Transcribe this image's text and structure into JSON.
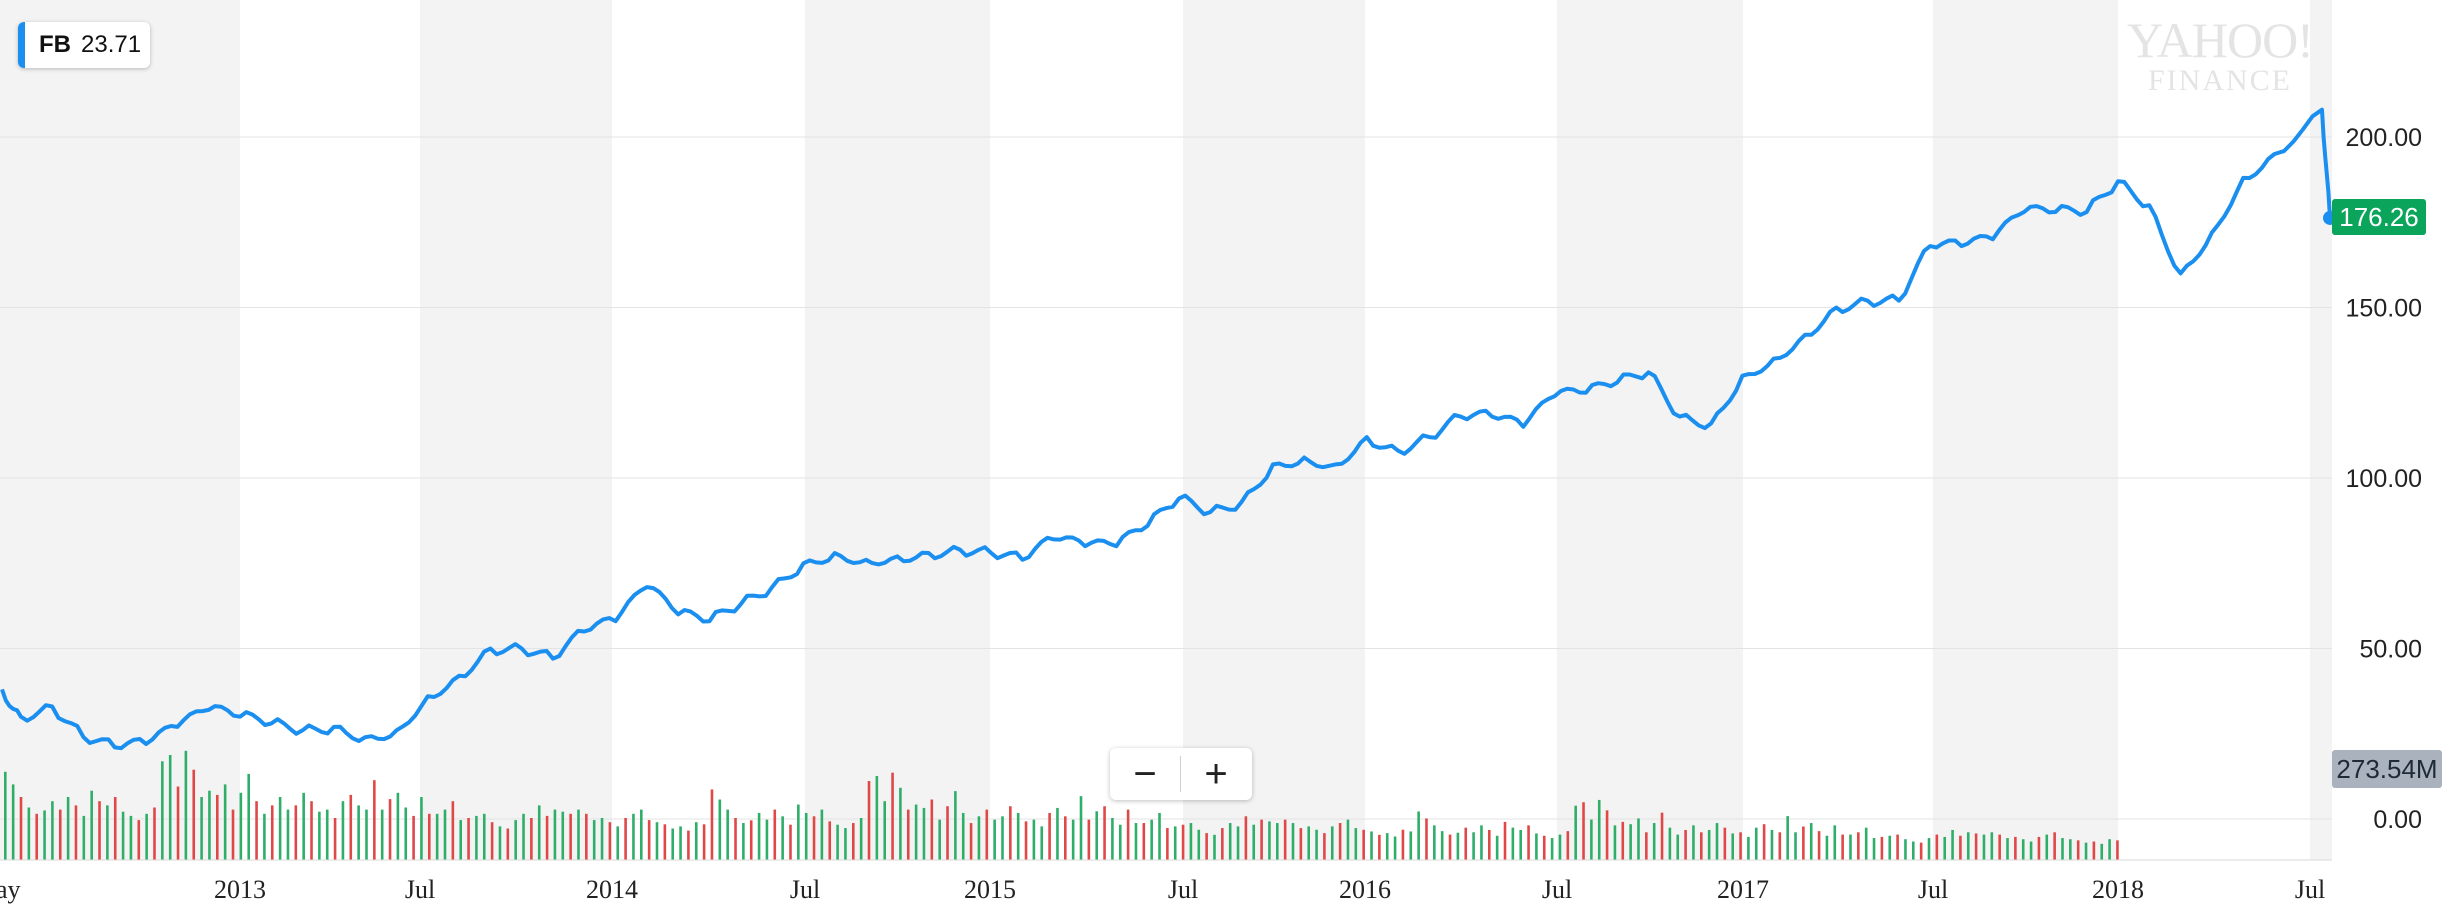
{
  "legend": {
    "symbol": "FB",
    "value": "23.71",
    "color": "#1a8ff0"
  },
  "watermark": {
    "line1": "YAHOO!",
    "line2": "FINANCE"
  },
  "zoom": {
    "minus_label": "−",
    "plus_label": "+"
  },
  "last_price_label": "176.26",
  "last_volume_label": "273.54M",
  "colors": {
    "line": "#1a8ff0",
    "band": "#f3f3f3",
    "volume_up": "#2fae6a",
    "volume_down": "#e04848",
    "price_tag": "#0aa55a",
    "volume_tag": "#a9b2bd"
  },
  "chart_data": {
    "type": "line",
    "title": "",
    "series": [
      {
        "name": "FB",
        "x": [
          "2012-05",
          "2012-06",
          "2012-07",
          "2012-08",
          "2012-09",
          "2012-10",
          "2012-11",
          "2012-12",
          "2013-01",
          "2013-02",
          "2013-03",
          "2013-04",
          "2013-05",
          "2013-06",
          "2013-07",
          "2013-08",
          "2013-09",
          "2013-10",
          "2013-11",
          "2013-12",
          "2014-01",
          "2014-02",
          "2014-03",
          "2014-04",
          "2014-05",
          "2014-06",
          "2014-07",
          "2014-08",
          "2014-09",
          "2014-10",
          "2014-11",
          "2014-12",
          "2015-01",
          "2015-02",
          "2015-03",
          "2015-04",
          "2015-05",
          "2015-06",
          "2015-07",
          "2015-08",
          "2015-09",
          "2015-10",
          "2015-11",
          "2015-12",
          "2016-01",
          "2016-02",
          "2016-03",
          "2016-04",
          "2016-05",
          "2016-06",
          "2016-07",
          "2016-08",
          "2016-09",
          "2016-10",
          "2016-11",
          "2016-12",
          "2017-01",
          "2017-02",
          "2017-03",
          "2017-04",
          "2017-05",
          "2017-06",
          "2017-07",
          "2017-08",
          "2017-09",
          "2017-10",
          "2017-11",
          "2017-12",
          "2018-01",
          "2018-02",
          "2018-03",
          "2018-04",
          "2018-05",
          "2018-06",
          "2018-07",
          "2018-07-26"
        ],
        "values": [
          38,
          30,
          33,
          24,
          21,
          22,
          27,
          32,
          30,
          28,
          26,
          27,
          24,
          26,
          36,
          42,
          50,
          50,
          47,
          55,
          58,
          68,
          60,
          58,
          63,
          68,
          75,
          78,
          76,
          77,
          78,
          79,
          78,
          76,
          82,
          80,
          80,
          86,
          94,
          90,
          93,
          104,
          106,
          104,
          112,
          108,
          112,
          118,
          118,
          115,
          124,
          125,
          128,
          131,
          118,
          116,
          130,
          135,
          142,
          150,
          152,
          152,
          168,
          168,
          170,
          178,
          178,
          178,
          187,
          180,
          160,
          172,
          188,
          195,
          208,
          176.26
        ]
      }
    ],
    "volume": {
      "name": "Volume",
      "values": [
        210,
        180,
        150,
        125,
        110,
        118,
        140,
        120,
        150,
        130,
        105,
        165,
        140,
        130,
        150,
        115,
        105,
        95,
        110,
        125,
        235,
        250,
        175,
        260,
        215,
        150,
        165,
        155,
        180,
        120,
        160,
        205,
        140,
        110,
        130,
        150,
        120,
        130,
        160,
        140,
        115,
        120,
        100,
        140,
        155,
        130,
        120,
        190,
        120,
        145,
        160,
        125,
        105,
        150,
        110,
        110,
        120,
        140,
        95,
        100,
        105,
        110,
        90,
        80,
        75,
        95,
        110,
        100,
        130,
        105,
        120,
        115,
        110,
        120,
        110,
        95,
        100,
        90,
        80,
        100,
        110,
        120,
        95,
        90,
        85,
        75,
        80,
        70,
        90,
        85
      ],
      "directions": "mixed"
    },
    "x_tick_labels": [
      "ay",
      "2013",
      "Jul",
      "2014",
      "Jul",
      "2015",
      "Jul",
      "2016",
      "Jul",
      "2017",
      "Jul",
      "2018",
      "Jul"
    ],
    "y_tick_labels": [
      "200.00",
      "150.00",
      "100.00",
      "50.00",
      "0.00"
    ],
    "ylim": [
      -11,
      238
    ],
    "y_ticks": [
      0,
      50,
      100,
      150,
      200
    ],
    "xlabel": "",
    "ylabel": "",
    "grid": true,
    "legend_position": "top-left"
  }
}
